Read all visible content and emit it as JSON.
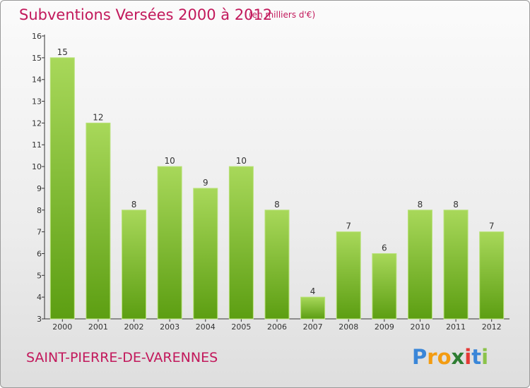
{
  "chart_data": {
    "type": "bar",
    "title": "Subventions Versées 2000 à 2012",
    "subtitle": "(en milliers d'€)",
    "categories": [
      "2000",
      "2001",
      "2002",
      "2003",
      "2004",
      "2005",
      "2006",
      "2007",
      "2008",
      "2009",
      "2010",
      "2011",
      "2012"
    ],
    "values": [
      15,
      12,
      8,
      10,
      9,
      10,
      8,
      4,
      7,
      6,
      8,
      8,
      7
    ],
    "data_labels": [
      "15",
      "12",
      "8",
      "10",
      "9",
      "10",
      "8",
      "4",
      "7",
      "6",
      "8",
      "8",
      "7"
    ],
    "y_ticks": [
      "3",
      "4",
      "5",
      "6",
      "7",
      "8",
      "9",
      "10",
      "11",
      "12",
      "13",
      "14",
      "15",
      "16"
    ],
    "ylim": [
      3,
      16
    ],
    "xlabel": "",
    "ylabel": "",
    "grid": false,
    "legend": "none",
    "colors": {
      "bar_light": "#a8d85a",
      "bar_dark": "#5c9e12",
      "axis": "#333333",
      "text": "#333333",
      "accent": "#c2185b"
    }
  },
  "footer": {
    "commune": "SAINT-PIERRE-DE-VARENNES",
    "logo_letters": [
      "P",
      "r",
      "o",
      "x",
      "i",
      "t",
      "i"
    ],
    "logo_colors": [
      "#3a86d8",
      "#f39c12",
      "#f39c12",
      "#2e7d32",
      "#e53935",
      "#3a86d8",
      "#8bc34a"
    ]
  }
}
